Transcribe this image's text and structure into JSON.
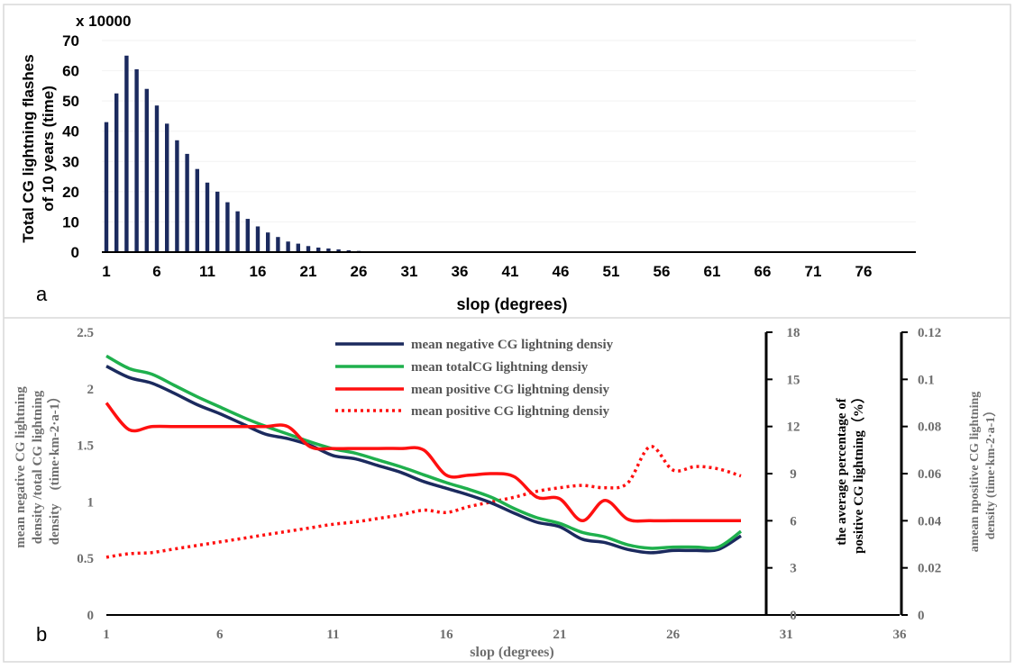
{
  "panels": {
    "a_label": "a",
    "b_label": "b"
  },
  "chart_data": [
    {
      "type": "bar",
      "panel": "a",
      "multiplier_label": "x 10000",
      "ylabel_line1": "Total CG lightning flashes",
      "ylabel_line2": "of 10 years (time)",
      "xlabel": "slop (degrees)",
      "ylim": [
        0,
        70
      ],
      "yticks": [
        0,
        10,
        20,
        30,
        40,
        50,
        60,
        70
      ],
      "xtick_labels": [
        "1",
        "6",
        "11",
        "16",
        "21",
        "26",
        "31",
        "36",
        "41",
        "46",
        "51",
        "56",
        "61",
        "66",
        "71",
        "76"
      ],
      "color": "#1b2a5e",
      "x": [
        1,
        2,
        3,
        4,
        5,
        6,
        7,
        8,
        9,
        10,
        11,
        12,
        13,
        14,
        15,
        16,
        17,
        18,
        19,
        20,
        21,
        22,
        23,
        24,
        25,
        26,
        27,
        28,
        29,
        30,
        31,
        32,
        33,
        34,
        35,
        36,
        37,
        38,
        39,
        40,
        41,
        42,
        43,
        44,
        45,
        46,
        47,
        48,
        49,
        50,
        51,
        52,
        53,
        54,
        55,
        56,
        57,
        58,
        59,
        60,
        61,
        62,
        63,
        64,
        65,
        66,
        67,
        68,
        69,
        70,
        71,
        72,
        73,
        74,
        75,
        76,
        77,
        78,
        79,
        80
      ],
      "values": [
        43,
        52.5,
        65,
        60.5,
        54,
        48.5,
        42.5,
        37,
        32.5,
        27.5,
        23,
        20,
        16.5,
        13.5,
        11,
        8.5,
        6.5,
        5,
        3.5,
        2.8,
        2,
        1.5,
        1.2,
        0.9,
        0.6,
        0.4,
        0.3,
        0,
        0,
        0,
        0,
        0,
        0,
        0,
        0,
        0,
        0,
        0,
        0,
        0,
        0,
        0,
        0,
        0,
        0,
        0,
        0,
        0,
        0,
        0,
        0,
        0,
        0,
        0,
        0,
        0,
        0,
        0,
        0,
        0,
        0,
        0,
        0,
        0,
        0,
        0,
        0,
        0,
        0,
        0,
        0,
        0,
        0,
        0,
        0,
        0,
        0,
        0,
        0,
        0
      ]
    },
    {
      "type": "line",
      "panel": "b",
      "xlabel": "slop (degrees)",
      "xlim": [
        1,
        36
      ],
      "xtick_labels": [
        "1",
        "6",
        "11",
        "16",
        "21",
        "26",
        "31",
        "36"
      ],
      "y_left": {
        "label_line1": "mean negative CG lightning",
        "label_line2": "density /total CG lightning",
        "label_line3": "density　(time·km-2·a-1）",
        "ylim": [
          0,
          2.5
        ],
        "tick_labels": [
          "0",
          "0.5",
          "1",
          "1.5",
          "2",
          "2.5"
        ]
      },
      "y_mid": {
        "label_line1": "the average percentage of",
        "label_line2": "positive CG lightning（%）",
        "ylim": [
          0,
          18
        ],
        "tick_labels": [
          "0",
          "3",
          "6",
          "9",
          "12",
          "15",
          "18"
        ]
      },
      "y_right": {
        "label_line1": "amean npositive CG lightning",
        "label_line2": "density (time·km-2·a-1）",
        "ylim": [
          0,
          0.12
        ],
        "tick_labels": [
          "0",
          "0.02",
          "0.04",
          "0.06",
          "0.08",
          "0.1",
          "0.12"
        ]
      },
      "legend_position": "top-center",
      "series": [
        {
          "name": "mean negative CG lightning densiy",
          "axis": "left",
          "color": "#1b2a5e",
          "style": "solid",
          "x": [
            1,
            2,
            3,
            4,
            5,
            6,
            7,
            8,
            9,
            10,
            11,
            12,
            13,
            14,
            15,
            16,
            17,
            18,
            19,
            20,
            21,
            22,
            23,
            24,
            25,
            26,
            27,
            28,
            29
          ],
          "values": [
            2.2,
            2.1,
            2.05,
            1.96,
            1.86,
            1.78,
            1.69,
            1.6,
            1.56,
            1.5,
            1.41,
            1.38,
            1.32,
            1.26,
            1.18,
            1.12,
            1.06,
            0.99,
            0.9,
            0.82,
            0.78,
            0.67,
            0.64,
            0.58,
            0.55,
            0.57,
            0.57,
            0.58,
            0.7
          ]
        },
        {
          "name": "mean totalCG lightning densiy",
          "axis": "left",
          "color": "#1fb04d",
          "style": "solid",
          "x": [
            1,
            2,
            3,
            4,
            5,
            6,
            7,
            8,
            9,
            10,
            11,
            12,
            13,
            14,
            15,
            16,
            17,
            18,
            19,
            20,
            21,
            22,
            23,
            24,
            25,
            26,
            27,
            28,
            29
          ],
          "values": [
            2.29,
            2.18,
            2.13,
            2.03,
            1.93,
            1.84,
            1.75,
            1.67,
            1.6,
            1.53,
            1.47,
            1.43,
            1.37,
            1.31,
            1.24,
            1.17,
            1.11,
            1.04,
            0.94,
            0.86,
            0.81,
            0.73,
            0.69,
            0.62,
            0.59,
            0.6,
            0.6,
            0.6,
            0.74
          ]
        },
        {
          "name": "mean positive CG lightning densiy",
          "axis": "mid",
          "color": "#ff1010",
          "style": "solid",
          "x": [
            1,
            2,
            3,
            4,
            5,
            6,
            7,
            8,
            9,
            10,
            11,
            12,
            13,
            14,
            15,
            16,
            17,
            18,
            19,
            20,
            21,
            22,
            23,
            24,
            25,
            26,
            27,
            28,
            29
          ],
          "values": [
            13.5,
            11.8,
            12,
            12,
            12,
            12,
            12,
            12,
            12,
            10.7,
            10.6,
            10.6,
            10.6,
            10.6,
            10.5,
            8.9,
            8.9,
            9,
            8.8,
            7.5,
            7.4,
            6,
            7.3,
            6.1,
            6,
            6,
            6,
            6,
            6
          ]
        },
        {
          "name": "mean positive CG lightning densiy",
          "axis": "right",
          "color": "#ff1010",
          "style": "dotted",
          "x": [
            1,
            2,
            3,
            4,
            5,
            6,
            7,
            8,
            9,
            10,
            11,
            12,
            13,
            14,
            15,
            16,
            17,
            18,
            19,
            20,
            21,
            22,
            23,
            24,
            25,
            26,
            27,
            28,
            29
          ],
          "values": [
            0.0245,
            0.026,
            0.0265,
            0.028,
            0.0295,
            0.031,
            0.0325,
            0.034,
            0.0355,
            0.037,
            0.0385,
            0.0395,
            0.041,
            0.0425,
            0.0445,
            0.0435,
            0.046,
            0.048,
            0.05,
            0.0525,
            0.054,
            0.055,
            0.054,
            0.056,
            0.0715,
            0.0615,
            0.063,
            0.062,
            0.059
          ]
        }
      ]
    }
  ]
}
